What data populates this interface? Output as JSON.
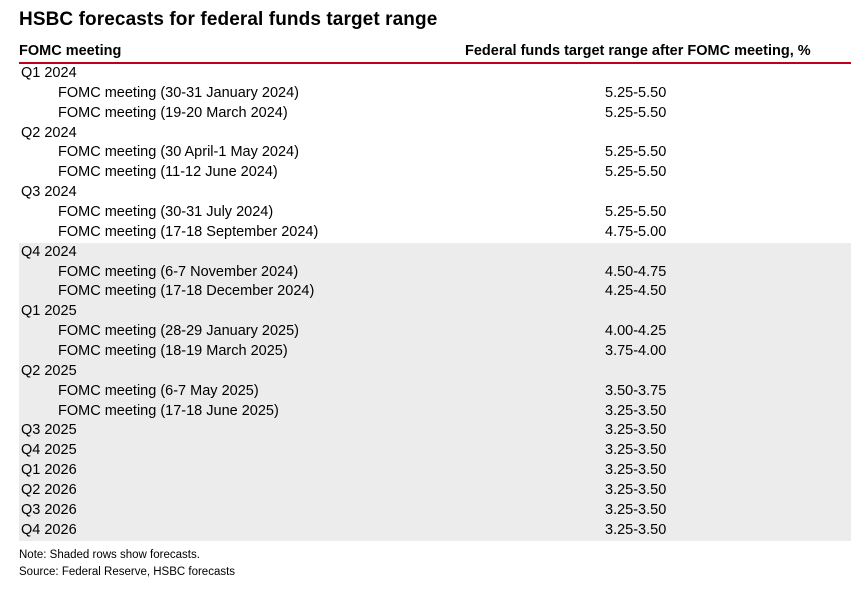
{
  "title": "HSBC forecasts for federal funds target range",
  "header": {
    "col1": "FOMC meeting",
    "col2": "Federal funds target range after FOMC meeting, %"
  },
  "rows": [
    {
      "label": "Q1 2024",
      "value": "",
      "meeting": false,
      "shaded": false
    },
    {
      "label": "FOMC meeting (30-31 January 2024)",
      "value": "5.25-5.50",
      "meeting": true,
      "shaded": false
    },
    {
      "label": "FOMC meeting (19-20 March 2024)",
      "value": "5.25-5.50",
      "meeting": true,
      "shaded": false
    },
    {
      "label": "Q2 2024",
      "value": "",
      "meeting": false,
      "shaded": false
    },
    {
      "label": "FOMC meeting (30 April-1 May 2024)",
      "value": "5.25-5.50",
      "meeting": true,
      "shaded": false
    },
    {
      "label": "FOMC meeting (11-12 June 2024)",
      "value": "5.25-5.50",
      "meeting": true,
      "shaded": false
    },
    {
      "label": "Q3 2024",
      "value": "",
      "meeting": false,
      "shaded": false
    },
    {
      "label": "FOMC meeting (30-31 July 2024)",
      "value": "5.25-5.50",
      "meeting": true,
      "shaded": false
    },
    {
      "label": "FOMC meeting (17-18 September 2024)",
      "value": "4.75-5.00",
      "meeting": true,
      "shaded": false
    },
    {
      "label": "Q4 2024",
      "value": "",
      "meeting": false,
      "shaded": true
    },
    {
      "label": "FOMC meeting (6-7 November 2024)",
      "value": "4.50-4.75",
      "meeting": true,
      "shaded": true
    },
    {
      "label": "FOMC meeting (17-18 December 2024)",
      "value": "4.25-4.50",
      "meeting": true,
      "shaded": true
    },
    {
      "label": "Q1 2025",
      "value": "",
      "meeting": false,
      "shaded": true
    },
    {
      "label": "FOMC meeting (28-29 January 2025)",
      "value": "4.00-4.25",
      "meeting": true,
      "shaded": true
    },
    {
      "label": "FOMC meeting (18-19 March 2025)",
      "value": "3.75-4.00",
      "meeting": true,
      "shaded": true
    },
    {
      "label": "Q2 2025",
      "value": "",
      "meeting": false,
      "shaded": true
    },
    {
      "label": "FOMC meeting (6-7 May 2025)",
      "value": "3.50-3.75",
      "meeting": true,
      "shaded": true
    },
    {
      "label": "FOMC meeting (17-18 June 2025)",
      "value": "3.25-3.50",
      "meeting": true,
      "shaded": true
    },
    {
      "label": "Q3 2025",
      "value": "3.25-3.50",
      "meeting": false,
      "shaded": true
    },
    {
      "label": "Q4 2025",
      "value": "3.25-3.50",
      "meeting": false,
      "shaded": true
    },
    {
      "label": "Q1 2026",
      "value": "3.25-3.50",
      "meeting": false,
      "shaded": true
    },
    {
      "label": "Q2 2026",
      "value": "3.25-3.50",
      "meeting": false,
      "shaded": true
    },
    {
      "label": "Q3 2026",
      "value": "3.25-3.50",
      "meeting": false,
      "shaded": true
    },
    {
      "label": "Q4 2026",
      "value": "3.25-3.50",
      "meeting": false,
      "shaded": true
    }
  ],
  "note": "Note: Shaded rows show forecasts.",
  "source": "Source: Federal Reserve, HSBC forecasts",
  "colors": {
    "rule": "#c0001a",
    "shade": "#ececec"
  }
}
